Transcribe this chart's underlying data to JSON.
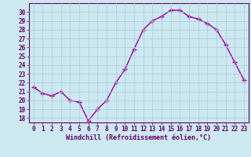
{
  "x": [
    0,
    1,
    2,
    3,
    4,
    5,
    6,
    7,
    8,
    9,
    10,
    11,
    12,
    13,
    14,
    15,
    16,
    17,
    18,
    19,
    20,
    21,
    22,
    23
  ],
  "y": [
    21.5,
    20.8,
    20.5,
    21.0,
    20.0,
    19.8,
    17.7,
    19.0,
    20.0,
    22.0,
    23.5,
    25.8,
    28.0,
    29.0,
    29.5,
    30.2,
    30.2,
    29.5,
    29.2,
    28.7,
    28.0,
    26.3,
    24.3,
    22.3
  ],
  "line_color": "#990099",
  "marker": "+",
  "marker_size": 4,
  "bg_color": "#cce8f0",
  "grid_color": "#aaccdd",
  "xlabel": "Windchill (Refroidissement éolien,°C)",
  "ylim": [
    17.5,
    31.0
  ],
  "xlim": [
    -0.5,
    23.5
  ],
  "yticks": [
    18,
    19,
    20,
    21,
    22,
    23,
    24,
    25,
    26,
    27,
    28,
    29,
    30
  ],
  "xticks": [
    0,
    1,
    2,
    3,
    4,
    5,
    6,
    7,
    8,
    9,
    10,
    11,
    12,
    13,
    14,
    15,
    16,
    17,
    18,
    19,
    20,
    21,
    22,
    23
  ],
  "xlabel_color": "#660066",
  "tick_color": "#660066",
  "spine_color": "#660066",
  "tick_fontsize": 5.5,
  "xlabel_fontsize": 6.0,
  "linewidth": 1.0
}
